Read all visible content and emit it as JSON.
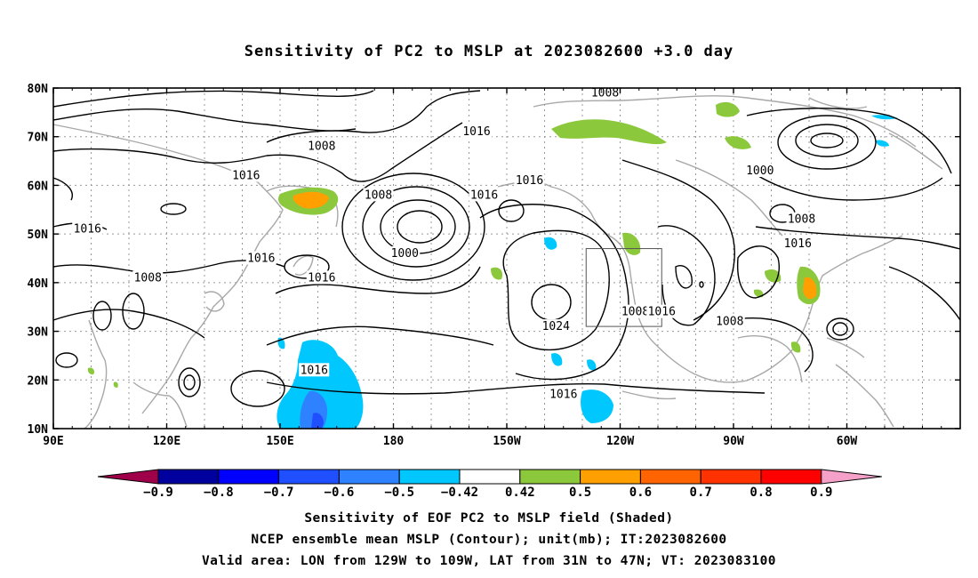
{
  "title": "Sensitivity of PC2 to MSLP at 2023082600 +3.0 day",
  "captions": [
    "Sensitivity of EOF PC2 to MSLP field (Shaded)",
    "NCEP ensemble mean MSLP (Contour); unit(mb); IT:2023082600",
    "Valid area: LON from 129W to 109W, LAT from 31N to 47N; VT: 2023083100"
  ],
  "lat_ticks": [
    "80N",
    "70N",
    "60N",
    "50N",
    "40N",
    "30N",
    "20N",
    "10N"
  ],
  "lon_ticks": [
    "90E",
    "120E",
    "150E",
    "180",
    "150W",
    "120W",
    "90W",
    "60W"
  ],
  "contour_labels": [
    {
      "text": "1008",
      "lon": 236,
      "lat": 79
    },
    {
      "text": "1016",
      "lon": 202,
      "lat": 71
    },
    {
      "text": "1008",
      "lon": 161,
      "lat": 68
    },
    {
      "text": "1016",
      "lon": 141,
      "lat": 62
    },
    {
      "text": "1016",
      "lon": 216,
      "lat": 61
    },
    {
      "text": "1016",
      "lon": 204,
      "lat": 58
    },
    {
      "text": "1008",
      "lon": 176,
      "lat": 58
    },
    {
      "text": "1000",
      "lon": 277,
      "lat": 63
    },
    {
      "text": "1008",
      "lon": 288,
      "lat": 53
    },
    {
      "text": "1016",
      "lon": 287,
      "lat": 48
    },
    {
      "text": "1016",
      "lon": 99,
      "lat": 51
    },
    {
      "text": "1000",
      "lon": 183,
      "lat": 46
    },
    {
      "text": "1016",
      "lon": 145,
      "lat": 45
    },
    {
      "text": "1008",
      "lon": 115,
      "lat": 41
    },
    {
      "text": "1016",
      "lon": 161,
      "lat": 41
    },
    {
      "text": "1008",
      "lon": 244,
      "lat": 34
    },
    {
      "text": "1016",
      "lon": 251,
      "lat": 34
    },
    {
      "text": "1024",
      "lon": 223,
      "lat": 31
    },
    {
      "text": "1008",
      "lon": 269,
      "lat": 32
    },
    {
      "text": "1016",
      "lon": 159,
      "lat": 22
    },
    {
      "text": "1016",
      "lon": 225,
      "lat": 17
    }
  ],
  "valid_area": {
    "lon_min": 231,
    "lon_max": 251,
    "lat_min": 31,
    "lat_max": 47
  },
  "colorbar": {
    "labels": [
      "-0.9",
      "-0.8",
      "-0.7",
      "-0.6",
      "-0.5",
      "-0.42",
      "0.42",
      "0.5",
      "0.6",
      "0.7",
      "0.8",
      "0.9"
    ],
    "colors": [
      "#a0004a",
      "#00009e",
      "#0000ff",
      "#1f4fff",
      "#2f82ff",
      "#00c8ff",
      "#ffffff",
      "#8cc83c",
      "#ffa000",
      "#ff6400",
      "#ff3200",
      "#ff0000",
      "#f5a0c8"
    ]
  }
}
